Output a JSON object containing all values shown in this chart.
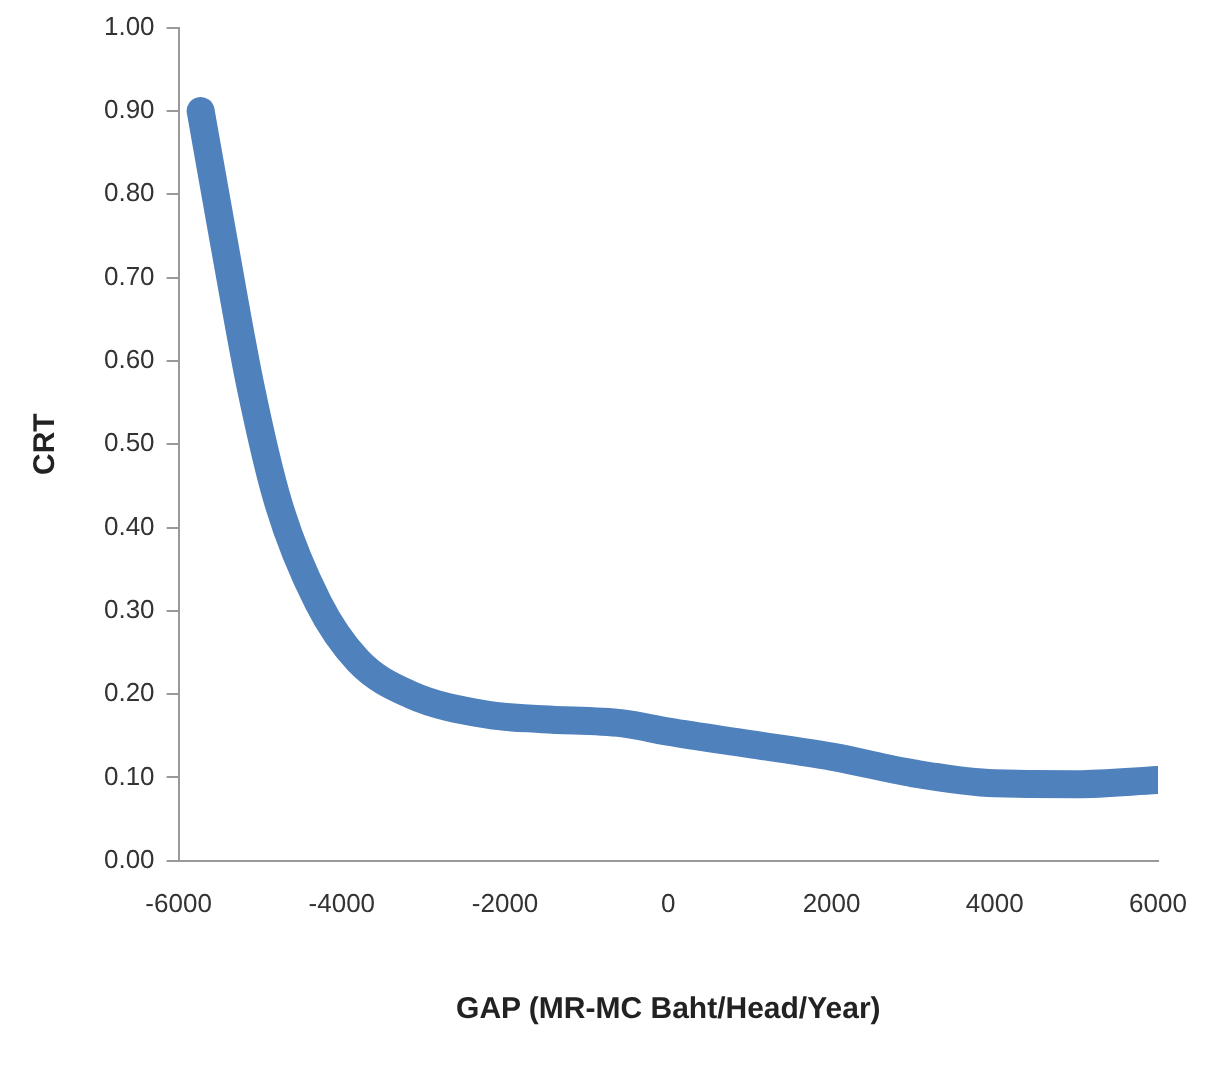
{
  "chart_data": {
    "type": "line",
    "xlabel": "GAP (MR-MC Baht/Head/Year)",
    "ylabel": "CRT",
    "x": [
      -5730,
      -5440,
      -5120,
      -4780,
      -4290,
      -3800,
      -3170,
      -2190,
      -1540,
      -560,
      0,
      1000,
      2000,
      3000,
      4000,
      5000,
      6000
    ],
    "series": [
      {
        "color": "#4f81bd",
        "values": [
          0.9,
          0.74,
          0.57,
          0.43,
          0.31,
          0.24,
          0.2,
          0.175,
          0.17,
          0.165,
          0.155,
          0.14,
          0.125,
          0.105,
          0.093,
          0.092,
          0.097
        ]
      }
    ],
    "xlim": [
      -6000,
      6000
    ],
    "xticks": [
      -6000,
      -4000,
      -2000,
      0,
      2000,
      4000,
      6000
    ],
    "ylim": [
      0,
      1
    ],
    "yticks": [
      {
        "value": 0,
        "label": "0.00"
      },
      {
        "value": 0.1,
        "label": "0.10"
      },
      {
        "value": 0.2,
        "label": "0.20"
      },
      {
        "value": 0.3,
        "label": "0.30"
      },
      {
        "value": 0.4,
        "label": "0.40"
      },
      {
        "value": 0.5,
        "label": "0.50"
      },
      {
        "value": 0.6,
        "label": "0.60"
      },
      {
        "value": 0.7,
        "label": "0.70"
      },
      {
        "value": 0.8,
        "label": "0.80"
      },
      {
        "value": 0.9,
        "label": "0.90"
      },
      {
        "value": 1,
        "label": "1.00"
      }
    ],
    "grid": false,
    "legend": false,
    "marker": "none",
    "line_style": "solid"
  }
}
